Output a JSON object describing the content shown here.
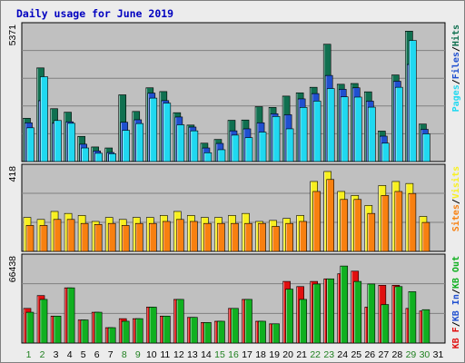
{
  "title": "Daily usage for June 2019",
  "colors": {
    "frame_bg": "#ececec",
    "panel_bg": "#c0c0c0",
    "title": "#0000c0",
    "hits": "#107050",
    "files": "#2050d0",
    "pages": "#20d8f0",
    "visits": "#f8f020",
    "sites": "#f88010",
    "kbin": "#10b020",
    "kbout": "#e01010",
    "weekend_label": "#208020",
    "weekday_label": "#000000"
  },
  "chart_data": [
    {
      "type": "bar",
      "panel": "top",
      "ymax_label": "5371",
      "ymax": 5371,
      "legend": [
        "Pages",
        "Files",
        "Hits"
      ],
      "x": [
        "1",
        "2",
        "3",
        "4",
        "5",
        "6",
        "7",
        "8",
        "9",
        "10",
        "11",
        "12",
        "13",
        "14",
        "15",
        "16",
        "17",
        "18",
        "19",
        "20",
        "21",
        "22",
        "23",
        "24",
        "25",
        "26",
        "27",
        "28",
        "29",
        "30",
        "31"
      ],
      "weekend_days": [
        "1",
        "2",
        "8",
        "9",
        "15",
        "16",
        "22",
        "23",
        "29",
        "30"
      ],
      "series": [
        {
          "name": "Hits",
          "values": [
            1720,
            3720,
            2100,
            1960,
            1000,
            580,
            540,
            2650,
            1990,
            2930,
            2780,
            1940,
            1450,
            730,
            880,
            1640,
            1650,
            2180,
            2150,
            2600,
            2730,
            2950,
            4660,
            3070,
            3100,
            2770,
            1210,
            3440,
            5180,
            1490,
            0
          ]
        },
        {
          "name": "Files",
          "values": [
            1540,
            2420,
            1530,
            1580,
            690,
            420,
            360,
            1560,
            1660,
            2720,
            2420,
            1770,
            1370,
            540,
            720,
            1220,
            1300,
            1540,
            1900,
            1860,
            2490,
            2700,
            3420,
            2870,
            2930,
            2400,
            1010,
            3190,
            3860,
            1280,
            0
          ]
        },
        {
          "name": "Pages",
          "values": [
            1340,
            3370,
            1630,
            1520,
            540,
            330,
            310,
            1240,
            1510,
            2520,
            2320,
            1460,
            1220,
            350,
            470,
            1050,
            950,
            1170,
            1790,
            1300,
            2150,
            2400,
            2900,
            2570,
            2560,
            2160,
            730,
            2950,
            4810,
            1100,
            0
          ]
        }
      ]
    },
    {
      "type": "bar",
      "panel": "middle",
      "ymax_label": "418",
      "ymax": 418,
      "legend": [
        "Sites",
        "Visits"
      ],
      "x": [
        "1",
        "2",
        "3",
        "4",
        "5",
        "6",
        "7",
        "8",
        "9",
        "10",
        "11",
        "12",
        "13",
        "14",
        "15",
        "16",
        "17",
        "18",
        "19",
        "20",
        "21",
        "22",
        "23",
        "24",
        "25",
        "26",
        "27",
        "28",
        "29",
        "30",
        "31"
      ],
      "series": [
        {
          "name": "Visits",
          "values": [
            170,
            160,
            200,
            190,
            180,
            150,
            170,
            160,
            170,
            170,
            180,
            200,
            180,
            170,
            170,
            180,
            190,
            150,
            155,
            165,
            180,
            350,
            400,
            300,
            280,
            230,
            330,
            350,
            340,
            175,
            0
          ]
        },
        {
          "name": "Sites",
          "values": [
            130,
            130,
            160,
            160,
            140,
            135,
            140,
            130,
            140,
            140,
            150,
            160,
            150,
            140,
            140,
            140,
            140,
            140,
            125,
            140,
            150,
            300,
            360,
            260,
            260,
            190,
            280,
            300,
            290,
            145,
            0
          ]
        }
      ]
    },
    {
      "type": "bar",
      "panel": "bottom",
      "ymax_label": "66438",
      "ymax": 66438,
      "legend": [
        "KB F",
        "KB In",
        "KB Out"
      ],
      "x": [
        "1",
        "2",
        "3",
        "4",
        "5",
        "6",
        "7",
        "8",
        "9",
        "10",
        "11",
        "12",
        "13",
        "14",
        "15",
        "16",
        "17",
        "18",
        "19",
        "20",
        "21",
        "22",
        "23",
        "24",
        "25",
        "26",
        "27",
        "28",
        "29",
        "30",
        "31"
      ],
      "series": [
        {
          "name": "KB F",
          "values": [
            27000,
            37000,
            21000,
            43000,
            18000,
            24000,
            12000,
            19000,
            19000,
            28000,
            21000,
            34000,
            20000,
            16000,
            17000,
            27000,
            34000,
            17000,
            15000,
            48000,
            44000,
            48000,
            50000,
            54000,
            56000,
            28000,
            45000,
            45000,
            27000,
            25000,
            0
          ]
        },
        {
          "name": "KB In",
          "values": [
            24000,
            34000,
            21000,
            43000,
            18000,
            24000,
            12000,
            17000,
            19000,
            28000,
            21000,
            34000,
            20000,
            16000,
            17000,
            27000,
            34000,
            17000,
            15000,
            42000,
            34000,
            46000,
            50000,
            60000,
            48000,
            46000,
            30000,
            44000,
            40000,
            26000,
            0
          ]
        },
        {
          "name": "KB Out",
          "values": [
            0,
            0,
            0,
            0,
            0,
            0,
            0,
            0,
            0,
            0,
            0,
            0,
            0,
            0,
            0,
            0,
            0,
            0,
            0,
            0,
            0,
            0,
            0,
            0,
            0,
            0,
            0,
            0,
            0,
            0,
            0
          ]
        }
      ]
    }
  ]
}
